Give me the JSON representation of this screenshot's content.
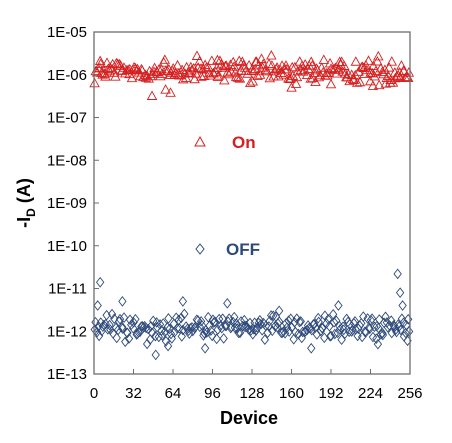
{
  "chart_data": {
    "type": "scatter",
    "ylabel_main": "-I",
    "ylabel_sub": "D",
    "ylabel_unit": " (A)",
    "xlabel": "Device",
    "log_y": true,
    "ylim_exp": [
      -13,
      -5
    ],
    "ytick_labels": [
      "1E-13",
      "1E-12",
      "1E-11",
      "1E-10",
      "1E-09",
      "1E-08",
      "1E-07",
      "1E-06",
      "1E-05"
    ],
    "xlim": [
      0,
      256
    ],
    "xticks": [
      0,
      32,
      64,
      96,
      128,
      160,
      192,
      224,
      256
    ],
    "xtick_labels": [
      "0",
      "32",
      "64",
      "96",
      "128",
      "160",
      "192",
      "224",
      "256"
    ],
    "grid": false,
    "legend_placement": "inside-center",
    "series": [
      {
        "name": "On",
        "marker": "triangle",
        "color": "#d42020",
        "typical_value": 1.2e-06,
        "range": [
          3.2e-07,
          2.2e-06
        ],
        "n_points": 256,
        "x_step": 1,
        "outliers": [
          {
            "x": 5,
            "y": 2.1e-06
          },
          {
            "x": 47,
            "y": 3.2e-07
          },
          {
            "x": 58,
            "y": 4.5e-07
          },
          {
            "x": 62,
            "y": 3.8e-07
          },
          {
            "x": 100,
            "y": 2.2e-06
          },
          {
            "x": 131,
            "y": 2e-06
          },
          {
            "x": 160,
            "y": 5e-07
          },
          {
            "x": 176,
            "y": 2e-06
          },
          {
            "x": 192,
            "y": 6e-07
          },
          {
            "x": 199,
            "y": 2e-06
          },
          {
            "x": 226,
            "y": 5.5e-07
          },
          {
            "x": 240,
            "y": 6.5e-07
          }
        ]
      },
      {
        "name": "OFF",
        "marker": "diamond",
        "color": "#2e4a7a",
        "typical_value": 1.2e-12,
        "range": [
          2.5e-13,
          2.2e-11
        ],
        "n_points": 256,
        "x_step": 1,
        "outliers": [
          {
            "x": 5,
            "y": 1.4e-11
          },
          {
            "x": 3,
            "y": 4e-12
          },
          {
            "x": 23,
            "y": 5e-12
          },
          {
            "x": 50,
            "y": 2.8e-13
          },
          {
            "x": 60,
            "y": 4.5e-13
          },
          {
            "x": 72,
            "y": 5e-12
          },
          {
            "x": 90,
            "y": 4e-13
          },
          {
            "x": 108,
            "y": 4.5e-12
          },
          {
            "x": 150,
            "y": 3e-12
          },
          {
            "x": 176,
            "y": 4e-13
          },
          {
            "x": 198,
            "y": 4e-12
          },
          {
            "x": 230,
            "y": 5e-13
          },
          {
            "x": 246,
            "y": 2.2e-11
          },
          {
            "x": 248,
            "y": 8e-12
          },
          {
            "x": 250,
            "y": 4e-12
          },
          {
            "x": 254,
            "y": 6e-13
          }
        ]
      }
    ]
  }
}
